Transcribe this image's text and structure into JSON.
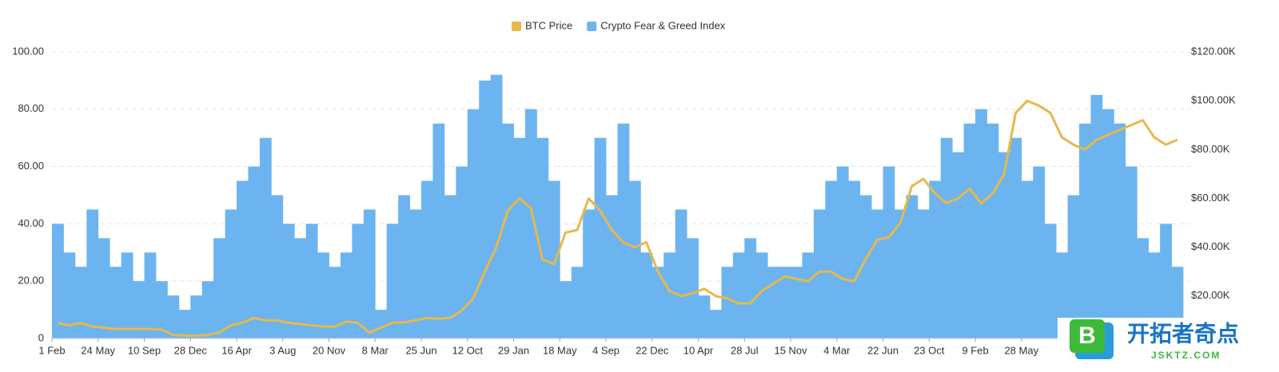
{
  "chart_data": {
    "type": "bar",
    "legend_position": "top",
    "grid": true,
    "categories": [
      "1 Feb",
      null,
      null,
      null,
      "24 May",
      null,
      null,
      null,
      "10 Sep",
      null,
      null,
      null,
      "28 Dec",
      null,
      null,
      null,
      "16 Apr",
      null,
      null,
      null,
      "3 Aug",
      null,
      null,
      null,
      "20 Nov",
      null,
      null,
      null,
      "8 Mar",
      null,
      null,
      null,
      "25 Jun",
      null,
      null,
      null,
      "12 Oct",
      null,
      null,
      null,
      "29 Jan",
      null,
      null,
      null,
      "18 May",
      null,
      null,
      null,
      "4 Sep",
      null,
      null,
      null,
      "22 Dec",
      null,
      null,
      null,
      "10 Apr",
      null,
      null,
      null,
      "28 Jul",
      null,
      null,
      null,
      "15 Nov",
      null,
      null,
      null,
      "4 Mar",
      null,
      null,
      null,
      "22 Jun",
      null,
      null,
      null,
      "23 Oct",
      null,
      null,
      null,
      "9 Feb",
      null,
      null,
      null,
      "28 May",
      null,
      null,
      null,
      null,
      null,
      null,
      null,
      null,
      null,
      null,
      null,
      null,
      null
    ],
    "series": [
      {
        "name": "Crypto Fear & Greed Index",
        "type": "bar",
        "color": "#6cb4f0",
        "axis": "y",
        "values": [
          40,
          30,
          25,
          45,
          35,
          25,
          30,
          20,
          30,
          20,
          15,
          10,
          15,
          20,
          35,
          45,
          55,
          60,
          70,
          50,
          40,
          35,
          40,
          30,
          25,
          30,
          40,
          45,
          10,
          40,
          50,
          45,
          55,
          75,
          50,
          60,
          80,
          90,
          92,
          75,
          70,
          80,
          70,
          55,
          20,
          25,
          45,
          70,
          50,
          75,
          55,
          30,
          25,
          30,
          45,
          35,
          15,
          10,
          25,
          30,
          35,
          30,
          25,
          25,
          25,
          30,
          45,
          55,
          60,
          55,
          50,
          45,
          60,
          45,
          50,
          45,
          55,
          70,
          65,
          75,
          80,
          75,
          65,
          70,
          55,
          60,
          40,
          30,
          50,
          75,
          85,
          80,
          75,
          60,
          35,
          30,
          40,
          25
        ]
      },
      {
        "name": "BTC Price",
        "type": "line",
        "color": "#e8b84b",
        "axis": "y2",
        "values": [
          9000,
          8000,
          9000,
          7500,
          7000,
          6500,
          6500,
          6500,
          6500,
          6300,
          4000,
          3800,
          3700,
          4000,
          5000,
          8000,
          9000,
          11000,
          10000,
          10000,
          9000,
          8500,
          8000,
          7500,
          7500,
          9500,
          9000,
          5000,
          7000,
          9000,
          9200,
          10000,
          11000,
          10700,
          11000,
          14000,
          19000,
          30000,
          40000,
          55000,
          60000,
          56000,
          35000,
          33000,
          46000,
          47000,
          60000,
          55000,
          47000,
          42000,
          40000,
          42000,
          30000,
          22000,
          20000,
          21000,
          23000,
          20000,
          19000,
          17000,
          17000,
          22000,
          25000,
          28000,
          27000,
          26000,
          30000,
          30000,
          27000,
          26000,
          35000,
          43000,
          44000,
          50000,
          65000,
          68000,
          62000,
          58000,
          60000,
          64000,
          58000,
          62000,
          70000,
          95000,
          100000,
          98000,
          95000,
          85000,
          82000,
          80000,
          84000,
          86000,
          88000,
          90000,
          92000,
          85000,
          82000,
          84000
        ]
      }
    ],
    "ylim": [
      0,
      100
    ],
    "yticks": [
      0,
      {
        "value": 20,
        "label": "20.00"
      },
      {
        "value": 40,
        "label": "40.00"
      },
      {
        "value": 60,
        "label": "60.00"
      },
      {
        "value": 80,
        "label": "80.00"
      },
      {
        "value": 100,
        "label": "100.00"
      }
    ],
    "y2lim": [
      2600,
      120000
    ],
    "y2ticks": [
      {
        "value": 20000,
        "label": "$20.00K"
      },
      {
        "value": 40000,
        "label": "$40.00K"
      },
      {
        "value": 60000,
        "label": "$60.00K"
      },
      {
        "value": 80000,
        "label": "$80.00K"
      },
      {
        "value": 100000,
        "label": "$100.00K"
      },
      {
        "value": 120000,
        "label": "$120.00K"
      }
    ]
  },
  "watermark": {
    "title": "开拓者奇点",
    "subtitle": "JSKTZ.COM",
    "icon": "B"
  }
}
